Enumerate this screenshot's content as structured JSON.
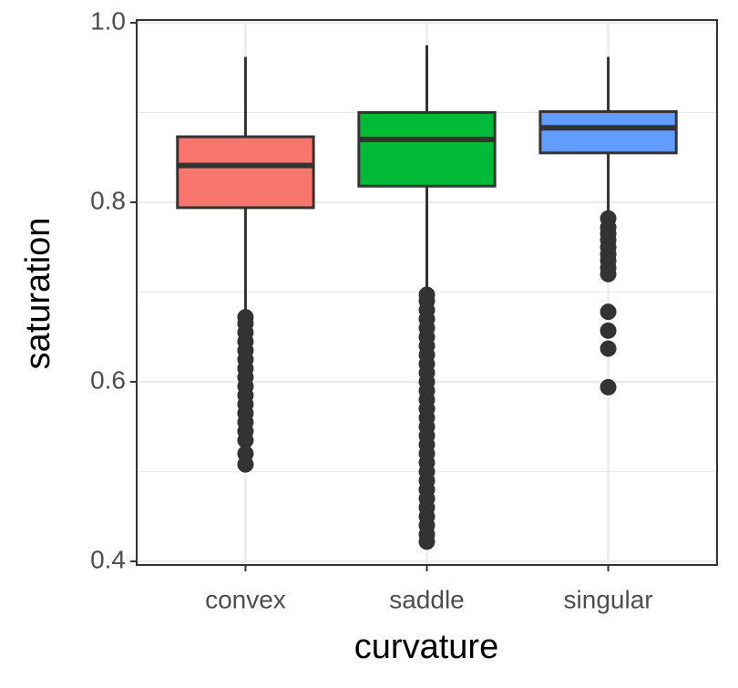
{
  "chart_data": {
    "type": "box",
    "x_label": "curvature",
    "y_label": "saturation",
    "categories": [
      "convex",
      "saddle",
      "singular"
    ],
    "colors": [
      "#F8766D",
      "#00BA38",
      "#619CFF"
    ],
    "boxes": [
      {
        "min": 0.675,
        "q1": 0.794,
        "median": 0.841,
        "q3": 0.873,
        "max": 0.962,
        "outliers": [
          0.672,
          0.665,
          0.655,
          0.645,
          0.635,
          0.625,
          0.615,
          0.605,
          0.595,
          0.585,
          0.575,
          0.565,
          0.555,
          0.545,
          0.535,
          0.52,
          0.508
        ]
      },
      {
        "min": 0.698,
        "q1": 0.818,
        "median": 0.87,
        "q3": 0.9,
        "max": 0.975,
        "outliers": [
          0.697,
          0.69,
          0.68,
          0.67,
          0.66,
          0.65,
          0.64,
          0.63,
          0.62,
          0.61,
          0.6,
          0.59,
          0.58,
          0.57,
          0.56,
          0.55,
          0.54,
          0.53,
          0.52,
          0.51,
          0.5,
          0.49,
          0.48,
          0.47,
          0.46,
          0.45,
          0.44,
          0.43,
          0.422
        ]
      },
      {
        "min": 0.784,
        "q1": 0.855,
        "median": 0.883,
        "q3": 0.901,
        "max": 0.962,
        "outliers": [
          0.782,
          0.772,
          0.765,
          0.758,
          0.75,
          0.742,
          0.735,
          0.727,
          0.72,
          0.678,
          0.657,
          0.637,
          0.594
        ]
      }
    ],
    "ylim": [
      0.396,
      1.003
    ],
    "yticks": [
      {
        "value": 0.4,
        "label": "0.4"
      },
      {
        "value": 0.6,
        "label": "0.6"
      },
      {
        "value": 0.8,
        "label": "0.8"
      },
      {
        "value": 1.0,
        "label": "1.0"
      }
    ],
    "minor_yticks": [
      0.5,
      0.7,
      0.9
    ],
    "grid": true
  }
}
